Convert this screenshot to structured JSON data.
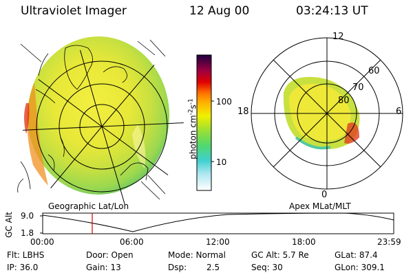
{
  "header": {
    "title": "Ultraviolet Imager",
    "date": "12 Aug 00",
    "time": "03:24:13 UT"
  },
  "colorbar": {
    "unit_label": "photon cm",
    "unit_sup1": "-2",
    "unit_s": "s",
    "unit_sup2": "-1",
    "tick_100": "100",
    "tick_10": "10",
    "colors": [
      "#ffffff",
      "#40d0d0",
      "#80e040",
      "#f0f000",
      "#ff9000",
      "#e00000",
      "#a00040",
      "#200040"
    ]
  },
  "geo_panel": {
    "label": "Geographic Lat/Lon"
  },
  "apex_panel": {
    "label": "Apex MLat/MLT",
    "mlt_12": "12",
    "mlt_18": "18",
    "mlt_6": "6",
    "mlt_0": "0",
    "lat_60": "60",
    "lat_70": "70",
    "lat_80": "80"
  },
  "altitude_plot": {
    "ylabel": "GC Alt",
    "ytick_top": "9.0",
    "ytick_bottom": "1.8",
    "xticks": [
      "00:00",
      "06:00",
      "12:00",
      "18:00",
      "23:59"
    ],
    "current_marker_time": "03:24",
    "marker_color": "#d00000"
  },
  "info": {
    "flt": "Flt: LBHS",
    "door": "Door: Open",
    "mode": "Mode: Normal",
    "gcalt": "GC Alt: 5.7 Re",
    "glat": "GLat:  87.4",
    "ip": "IP: 36.0",
    "gain": "Gain: 13",
    "dsp_label": "Dsp:",
    "dsp_value": "2.5",
    "seq": "Seq: 30",
    "glon": "GLon: 309.1"
  }
}
